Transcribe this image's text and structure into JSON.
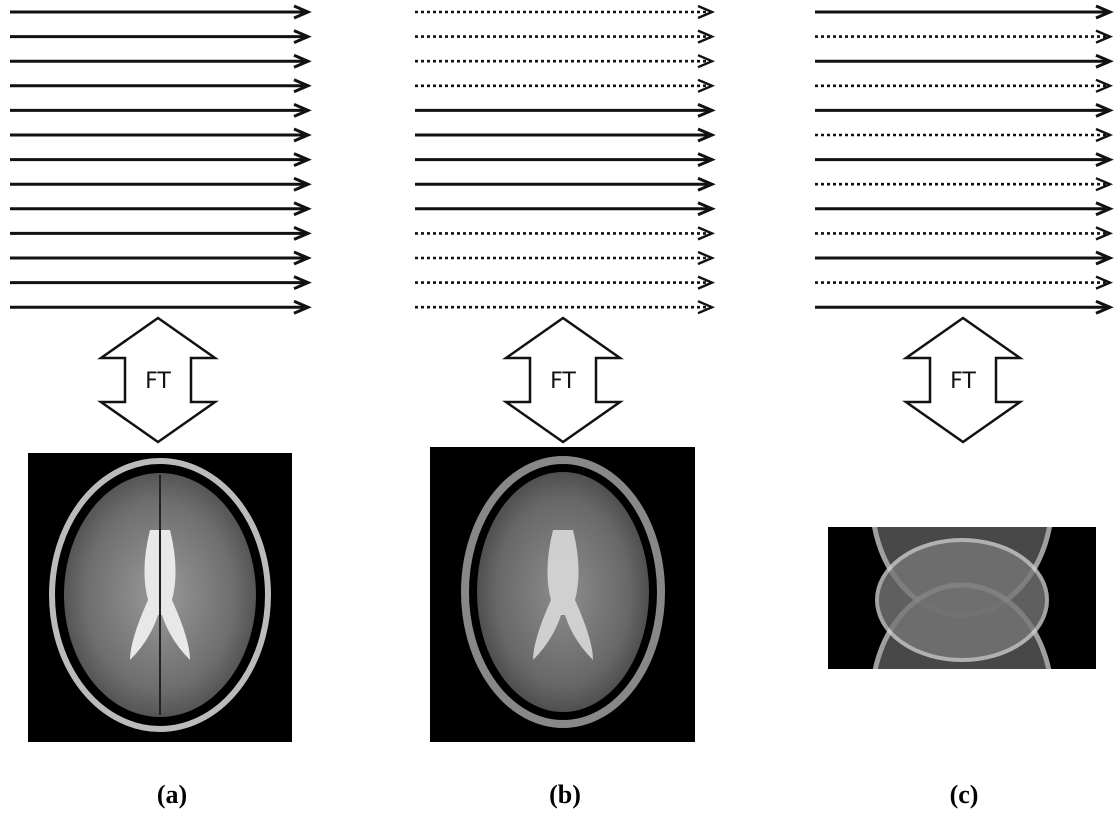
{
  "panels": [
    {
      "ft_label": "FT",
      "caption": "(a)"
    },
    {
      "ft_label": "FT",
      "caption": "(b)"
    },
    {
      "ft_label": "FT",
      "caption": "(c)"
    }
  ]
}
